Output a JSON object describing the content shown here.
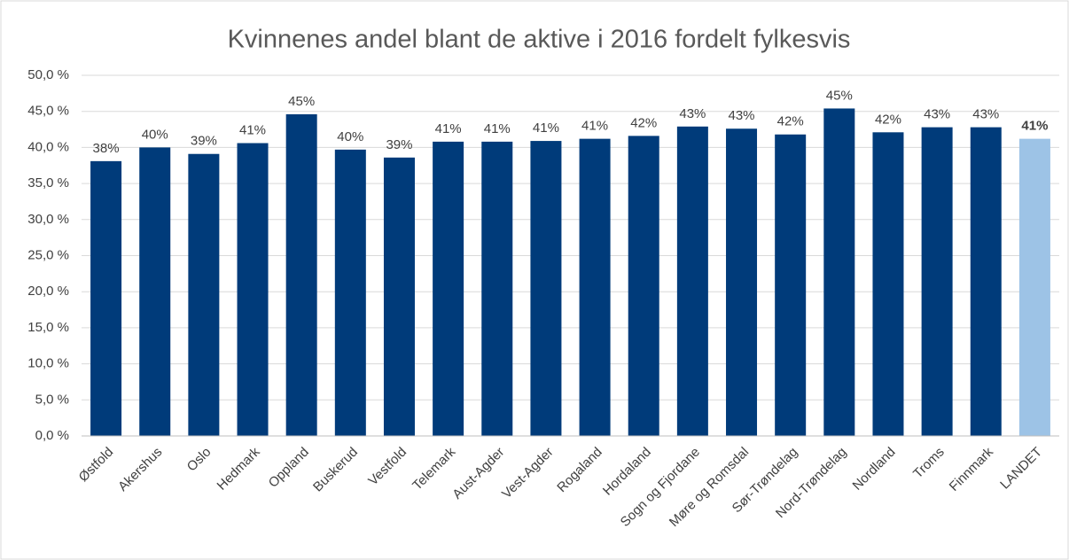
{
  "chart_data": {
    "type": "bar",
    "title": "Kvinnenes andel blant de aktive  i 2016 fordelt fylkesvis",
    "categories": [
      "Østfold",
      "Akershus",
      "Oslo",
      "Hedmark",
      "Oppland",
      "Buskerud",
      "Vestfold",
      "Telemark",
      "Aust-Agder",
      "Vest-Agder",
      "Rogaland",
      "Hordaland",
      "Sogn og Fjordane",
      "Møre og Romsdal",
      "Sør-Trøndelag",
      "Nord-Trøndelag",
      "Nordland",
      "Troms",
      "Finnmark",
      "LANDET"
    ],
    "values": [
      38.1,
      40.0,
      39.1,
      40.6,
      44.6,
      39.7,
      38.6,
      40.8,
      40.8,
      40.9,
      41.2,
      41.6,
      42.9,
      42.6,
      41.8,
      45.4,
      42.1,
      42.8,
      42.8,
      41.2
    ],
    "value_labels": [
      "38%",
      "40%",
      "39%",
      "41%",
      "45%",
      "40%",
      "39%",
      "41%",
      "41%",
      "41%",
      "41%",
      "42%",
      "43%",
      "43%",
      "42%",
      "45%",
      "42%",
      "43%",
      "43%",
      "41%"
    ],
    "colors": [
      "#003b7a",
      "#003b7a",
      "#003b7a",
      "#003b7a",
      "#003b7a",
      "#003b7a",
      "#003b7a",
      "#003b7a",
      "#003b7a",
      "#003b7a",
      "#003b7a",
      "#003b7a",
      "#003b7a",
      "#003b7a",
      "#003b7a",
      "#003b7a",
      "#003b7a",
      "#003b7a",
      "#003b7a",
      "#9dc3e6"
    ],
    "ylim": [
      0,
      50
    ],
    "yticks": [
      {
        "value": 0,
        "label": "0,0 %"
      },
      {
        "value": 5,
        "label": "5,0 %"
      },
      {
        "value": 10,
        "label": "10,0 %"
      },
      {
        "value": 15,
        "label": "15,0 %"
      },
      {
        "value": 20,
        "label": "20,0 %"
      },
      {
        "value": 25,
        "label": "25,0 %"
      },
      {
        "value": 30,
        "label": "30,0 %"
      },
      {
        "value": 35,
        "label": "35,0 %"
      },
      {
        "value": 40,
        "label": "40,0 %"
      },
      {
        "value": 45,
        "label": "45,0 %"
      },
      {
        "value": 50,
        "label": "50,0 %"
      }
    ],
    "grid": true
  }
}
